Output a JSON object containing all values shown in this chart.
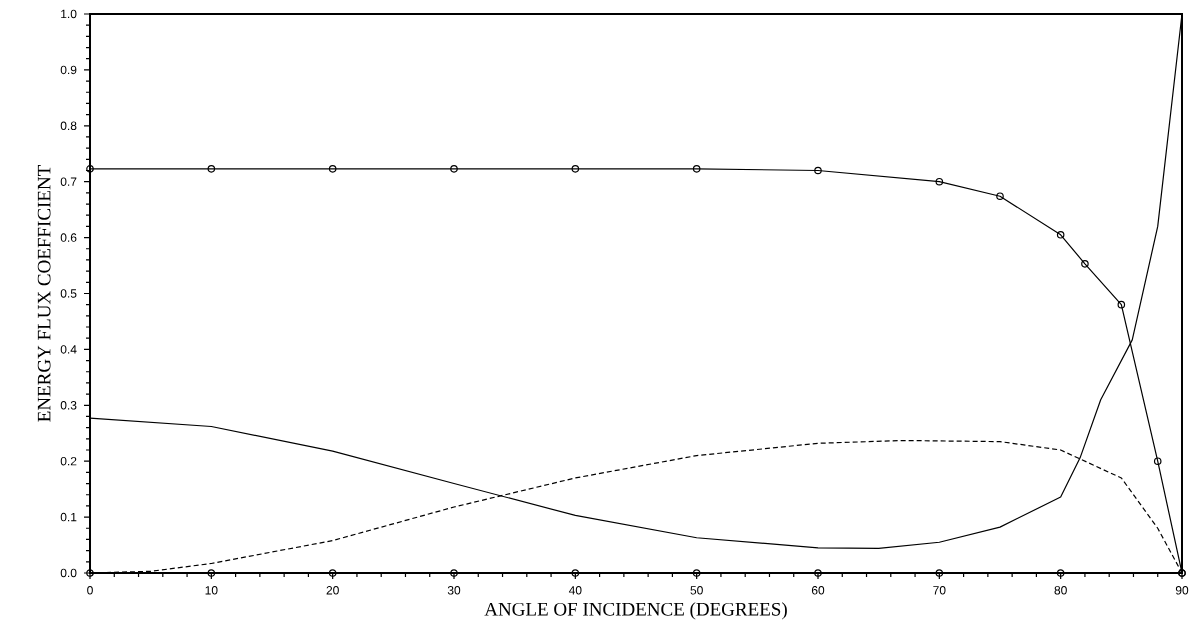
{
  "chart_data": {
    "type": "line",
    "xlabel": "ANGLE OF INCIDENCE (DEGREES)",
    "ylabel": "ENERGY FLUX COEFFICIENT",
    "xlim": [
      0,
      90
    ],
    "ylim": [
      0,
      1.0
    ],
    "xticks": [
      0,
      10,
      20,
      30,
      40,
      50,
      60,
      70,
      80,
      90
    ],
    "yticks": [
      {
        "value": 0,
        "label": "0.0"
      },
      0.1,
      0.2,
      0.3,
      0.4,
      0.5,
      0.6,
      0.7,
      0.8,
      0.9,
      {
        "value": 1.0,
        "label": "1.0"
      }
    ],
    "series": [
      {
        "color": "#000000",
        "marker": "circle",
        "line_style": "solid",
        "x": [
          0,
          10,
          20,
          30,
          40,
          50,
          60,
          70,
          75,
          80,
          82,
          85,
          88,
          90
        ],
        "values": [
          0.723,
          0.723,
          0.723,
          0.723,
          0.723,
          0.723,
          0.72,
          0.7,
          0.674,
          0.605,
          0.553,
          0.48,
          0.2,
          0
        ]
      },
      {
        "color": "#000000",
        "marker": "none",
        "line_style": "solid",
        "x": [
          0,
          10,
          20,
          30,
          40,
          50,
          60,
          65,
          70,
          75,
          80,
          81.6,
          83.3,
          85.9,
          88,
          90
        ],
        "values": [
          0.277,
          0.262,
          0.218,
          0.16,
          0.103,
          0.063,
          0.045,
          0.044,
          0.055,
          0.082,
          0.136,
          0.206,
          0.31,
          0.417,
          0.62,
          1.0
        ]
      },
      {
        "color": "#000000",
        "marker": "none",
        "line_style": "dashed",
        "x": [
          0,
          5,
          10,
          20,
          30,
          40,
          50,
          60,
          67,
          75,
          80,
          85,
          88,
          90
        ],
        "values": [
          0,
          0.003,
          0.017,
          0.058,
          0.118,
          0.17,
          0.21,
          0.232,
          0.237,
          0.235,
          0.22,
          0.17,
          0.08,
          0
        ]
      },
      {
        "color": "#000000",
        "marker": "circle",
        "line_style": "solid",
        "x": [
          0,
          10,
          20,
          30,
          40,
          50,
          60,
          70,
          80,
          90
        ],
        "values": [
          0,
          0,
          0,
          0,
          0,
          0,
          0,
          0,
          0,
          0
        ]
      }
    ]
  }
}
